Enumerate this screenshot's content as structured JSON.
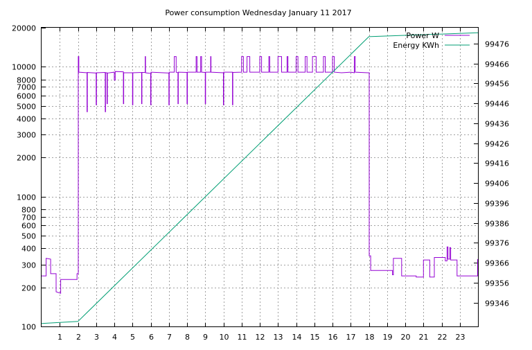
{
  "chart_data": {
    "type": "line",
    "title": "Power consumption Wednesday January 11 2017",
    "xlabel": "",
    "ylabel": "",
    "y2label": "",
    "grid": true,
    "legend": "top-right",
    "x_range": [
      0,
      24
    ],
    "x_ticks": [
      1,
      2,
      3,
      4,
      5,
      6,
      7,
      8,
      9,
      10,
      11,
      12,
      13,
      14,
      15,
      16,
      17,
      18,
      19,
      20,
      21,
      22,
      23
    ],
    "y_scale": "log",
    "y_range": [
      100,
      20000
    ],
    "y_ticks": [
      100,
      200,
      300,
      400,
      500,
      600,
      700,
      800,
      1000,
      2000,
      3000,
      4000,
      5000,
      6000,
      7000,
      8000,
      10000,
      20000
    ],
    "y2_range": [
      99334,
      99484
    ],
    "y2_ticks": [
      99346,
      99356,
      99366,
      99376,
      99386,
      99396,
      99406,
      99416,
      99426,
      99436,
      99446,
      99456,
      99466,
      99476
    ],
    "series": [
      {
        "name": "Power W",
        "axis": "left",
        "color": "#9400d3",
        "points": [
          [
            0,
            245
          ],
          [
            0.25,
            245
          ],
          [
            0.25,
            335
          ],
          [
            0.5,
            330
          ],
          [
            0.5,
            255
          ],
          [
            0.8,
            255
          ],
          [
            0.8,
            185
          ],
          [
            1.05,
            180
          ],
          [
            1.05,
            230
          ],
          [
            1.95,
            230
          ],
          [
            1.95,
            255
          ],
          [
            2.02,
            255
          ],
          [
            2.02,
            12000
          ],
          [
            2.05,
            12000
          ],
          [
            2.05,
            9100
          ],
          [
            2.5,
            9000
          ],
          [
            2.5,
            4500
          ],
          [
            2.52,
            4500
          ],
          [
            2.52,
            9050
          ],
          [
            3.0,
            8950
          ],
          [
            3.0,
            5100
          ],
          [
            3.02,
            5100
          ],
          [
            3.02,
            9000
          ],
          [
            3.5,
            9050
          ],
          [
            3.5,
            4500
          ],
          [
            3.52,
            4500
          ],
          [
            3.52,
            9000
          ],
          [
            3.6,
            9000
          ],
          [
            3.6,
            5200
          ],
          [
            3.62,
            5200
          ],
          [
            3.62,
            8950
          ],
          [
            4.0,
            9100
          ],
          [
            4.0,
            7900
          ],
          [
            4.05,
            7900
          ],
          [
            4.05,
            9200
          ],
          [
            4.5,
            9150
          ],
          [
            4.5,
            5200
          ],
          [
            4.52,
            5200
          ],
          [
            4.52,
            9000
          ],
          [
            5.0,
            9000
          ],
          [
            5.0,
            5100
          ],
          [
            5.02,
            5100
          ],
          [
            5.02,
            9000
          ],
          [
            5.5,
            9050
          ],
          [
            5.5,
            5200
          ],
          [
            5.52,
            5200
          ],
          [
            5.52,
            9050
          ],
          [
            5.7,
            9050
          ],
          [
            5.7,
            12000
          ],
          [
            5.72,
            12000
          ],
          [
            5.72,
            9000
          ],
          [
            6.0,
            8900
          ],
          [
            6.0,
            5100
          ],
          [
            6.02,
            5100
          ],
          [
            6.02,
            9100
          ],
          [
            7.0,
            8950
          ],
          [
            7.0,
            5100
          ],
          [
            7.02,
            5100
          ],
          [
            7.02,
            9100
          ],
          [
            7.3,
            9100
          ],
          [
            7.3,
            12000
          ],
          [
            7.4,
            12000
          ],
          [
            7.4,
            9100
          ],
          [
            7.5,
            9000
          ],
          [
            7.5,
            5200
          ],
          [
            7.52,
            5200
          ],
          [
            7.52,
            9100
          ],
          [
            8.0,
            9050
          ],
          [
            8.0,
            5200
          ],
          [
            8.02,
            5200
          ],
          [
            8.02,
            9100
          ],
          [
            8.5,
            9100
          ],
          [
            8.5,
            12000
          ],
          [
            8.55,
            12000
          ],
          [
            8.55,
            9100
          ],
          [
            8.75,
            9100
          ],
          [
            8.75,
            12000
          ],
          [
            8.8,
            12000
          ],
          [
            8.8,
            9100
          ],
          [
            9.0,
            9050
          ],
          [
            9.0,
            5200
          ],
          [
            9.02,
            5200
          ],
          [
            9.02,
            9100
          ],
          [
            9.3,
            9100
          ],
          [
            9.3,
            12000
          ],
          [
            9.32,
            12000
          ],
          [
            9.32,
            9100
          ],
          [
            10.0,
            9000
          ],
          [
            10.0,
            5100
          ],
          [
            10.02,
            5100
          ],
          [
            10.02,
            9100
          ],
          [
            10.5,
            9100
          ],
          [
            10.5,
            5100
          ],
          [
            10.52,
            5100
          ],
          [
            10.52,
            9050
          ],
          [
            11.0,
            9100
          ],
          [
            11.0,
            12000
          ],
          [
            11.1,
            12000
          ],
          [
            11.1,
            9100
          ],
          [
            11.3,
            9100
          ],
          [
            11.3,
            12000
          ],
          [
            11.45,
            12000
          ],
          [
            11.45,
            9100
          ],
          [
            12.0,
            9100
          ],
          [
            12.0,
            12000
          ],
          [
            12.1,
            12000
          ],
          [
            12.1,
            9100
          ],
          [
            12.5,
            9100
          ],
          [
            12.5,
            12000
          ],
          [
            12.55,
            12000
          ],
          [
            12.55,
            9100
          ],
          [
            13.0,
            9100
          ],
          [
            13.0,
            12000
          ],
          [
            13.2,
            12000
          ],
          [
            13.2,
            9100
          ],
          [
            13.5,
            9100
          ],
          [
            13.5,
            12000
          ],
          [
            13.55,
            12000
          ],
          [
            13.55,
            9100
          ],
          [
            14.0,
            9100
          ],
          [
            14.0,
            12000
          ],
          [
            14.1,
            12000
          ],
          [
            14.1,
            9100
          ],
          [
            14.5,
            9100
          ],
          [
            14.5,
            12000
          ],
          [
            14.6,
            12000
          ],
          [
            14.6,
            9100
          ],
          [
            14.9,
            9100
          ],
          [
            14.9,
            12000
          ],
          [
            15.1,
            12000
          ],
          [
            15.1,
            9100
          ],
          [
            15.5,
            9100
          ],
          [
            15.5,
            12000
          ],
          [
            15.6,
            12000
          ],
          [
            15.6,
            9100
          ],
          [
            16.0,
            9100
          ],
          [
            16.0,
            12000
          ],
          [
            16.1,
            12000
          ],
          [
            16.1,
            9100
          ],
          [
            16.5,
            9000
          ],
          [
            17.0,
            9100
          ],
          [
            17.2,
            9000
          ],
          [
            17.2,
            12000
          ],
          [
            17.25,
            12000
          ],
          [
            17.25,
            9100
          ],
          [
            17.95,
            9000
          ],
          [
            17.95,
            9000
          ],
          [
            18.02,
            9000
          ],
          [
            18.02,
            350
          ],
          [
            18.1,
            350
          ],
          [
            18.1,
            270
          ],
          [
            19.3,
            270
          ],
          [
            19.3,
            250
          ],
          [
            19.35,
            250
          ],
          [
            19.35,
            335
          ],
          [
            19.8,
            335
          ],
          [
            19.8,
            245
          ],
          [
            20.6,
            245
          ],
          [
            20.6,
            240
          ],
          [
            21.0,
            240
          ],
          [
            21.0,
            325
          ],
          [
            21.35,
            325
          ],
          [
            21.35,
            240
          ],
          [
            21.6,
            240
          ],
          [
            21.6,
            340
          ],
          [
            22.2,
            340
          ],
          [
            22.2,
            320
          ],
          [
            22.3,
            320
          ],
          [
            22.3,
            410
          ],
          [
            22.35,
            410
          ],
          [
            22.35,
            330
          ],
          [
            22.45,
            330
          ],
          [
            22.45,
            405
          ],
          [
            22.5,
            405
          ],
          [
            22.5,
            325
          ],
          [
            22.85,
            325
          ],
          [
            22.85,
            245
          ],
          [
            23.98,
            245
          ],
          [
            23.98,
            330
          ]
        ]
      },
      {
        "name": "Energy KWh",
        "axis": "right",
        "color": "#009e73",
        "points": [
          [
            0,
            99335.5
          ],
          [
            2.0,
            99336.5
          ],
          [
            18.0,
            99479.5
          ],
          [
            24,
            99481.5
          ]
        ]
      }
    ]
  }
}
